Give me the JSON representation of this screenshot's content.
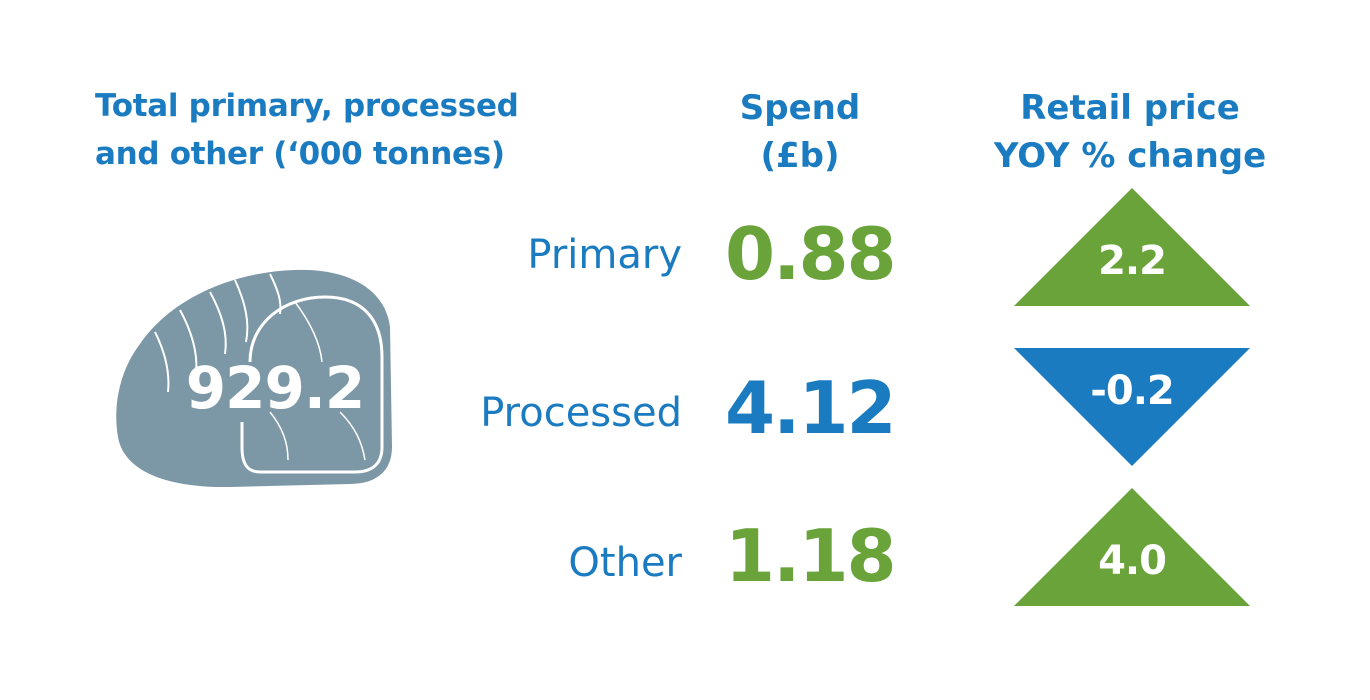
{
  "colors": {
    "blue": "#1a7bc0",
    "green": "#6aa33a",
    "meat_grey": "#7c97a6",
    "white": "#ffffff"
  },
  "header": {
    "total_title_line1": "Total primary, processed",
    "total_title_line2": "and other (‘000 tonnes)",
    "spend_title_line1": "Spend",
    "spend_title_line2": "(£b)",
    "change_title_line1": "Retail price",
    "change_title_line2": "YOY % change"
  },
  "total": {
    "icon": "meat-joint-icon",
    "value": "929.2"
  },
  "rows": [
    {
      "label": "Primary",
      "spend": "0.88",
      "spend_color": "green",
      "change": "2.2",
      "direction": "up",
      "icon": "up-triangle-icon"
    },
    {
      "label": "Processed",
      "spend": "4.12",
      "spend_color": "blue",
      "change": "-0.2",
      "direction": "down",
      "icon": "down-triangle-icon"
    },
    {
      "label": "Other",
      "spend": "1.18",
      "spend_color": "green",
      "change": "4.0",
      "direction": "up",
      "icon": "up-triangle-icon"
    }
  ]
}
